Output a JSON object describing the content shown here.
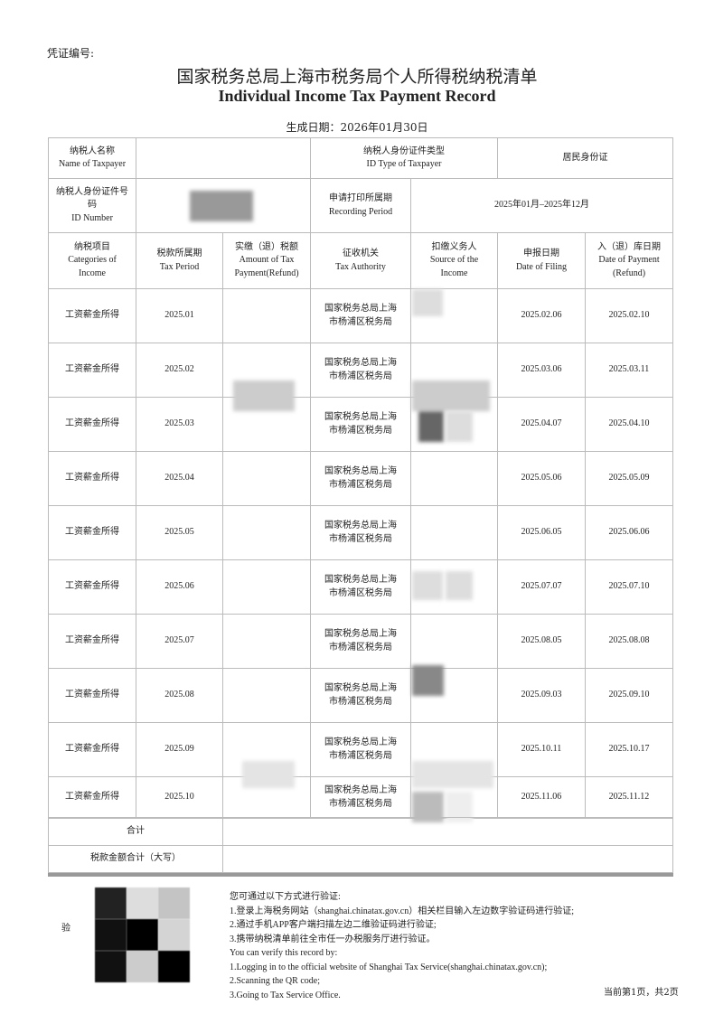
{
  "header": {
    "voucher_label": "凭证编号:",
    "title_cn": "国家税务总局上海市税务局个人所得税纳税清单",
    "title_en": "Individual Income Tax Payment Record",
    "generated": "生成日期：2026年01月30日"
  },
  "info": {
    "name_label_cn": "纳税人名称",
    "name_label_en": "Name of Taxpayer",
    "idtype_label_cn": "纳税人身份证件类型",
    "idtype_label_en": "ID Type of Taxpayer",
    "idtype_value": "居民身份证",
    "idnum_label_cn": "纳税人身份证件号码",
    "idnum_label_en": "ID Number",
    "period_label_cn": "申请打印所属期",
    "period_label_en": "Recording Period",
    "period_value": "2025年01月–2025年12月"
  },
  "columns": [
    {
      "cn": "纳税项目",
      "en": "Categories of Income"
    },
    {
      "cn": "税款所属期",
      "en": "Tax Period"
    },
    {
      "cn": "实缴（退）税额",
      "en": "Amount of Tax Payment(Refund)"
    },
    {
      "cn": "征收机关",
      "en": "Tax Authority"
    },
    {
      "cn": "扣缴义务人",
      "en": "Source of the Income"
    },
    {
      "cn": "申报日期",
      "en": "Date of Filing"
    },
    {
      "cn": "入（退）库日期",
      "en": "Date of Payment (Refund)"
    }
  ],
  "rows": [
    {
      "category": "工资薪金所得",
      "period": "2025.01",
      "authority": "国家税务总局上海市杨浦区税务局",
      "filing": "2025.02.06",
      "payment": "2025.02.10"
    },
    {
      "category": "工资薪金所得",
      "period": "2025.02",
      "authority": "国家税务总局上海市杨浦区税务局",
      "filing": "2025.03.06",
      "payment": "2025.03.11"
    },
    {
      "category": "工资薪金所得",
      "period": "2025.03",
      "authority": "国家税务总局上海市杨浦区税务局",
      "filing": "2025.04.07",
      "payment": "2025.04.10"
    },
    {
      "category": "工资薪金所得",
      "period": "2025.04",
      "authority": "国家税务总局上海市杨浦区税务局",
      "filing": "2025.05.06",
      "payment": "2025.05.09"
    },
    {
      "category": "工资薪金所得",
      "period": "2025.05",
      "authority": "国家税务总局上海市杨浦区税务局",
      "filing": "2025.06.05",
      "payment": "2025.06.06"
    },
    {
      "category": "工资薪金所得",
      "period": "2025.06",
      "authority": "国家税务总局上海市杨浦区税务局",
      "filing": "2025.07.07",
      "payment": "2025.07.10"
    },
    {
      "category": "工资薪金所得",
      "period": "2025.07",
      "authority": "国家税务总局上海市杨浦区税务局",
      "filing": "2025.08.05",
      "payment": "2025.08.08"
    },
    {
      "category": "工资薪金所得",
      "period": "2025.08",
      "authority": "国家税务总局上海市杨浦区税务局",
      "filing": "2025.09.03",
      "payment": "2025.09.10"
    },
    {
      "category": "工资薪金所得",
      "period": "2025.09",
      "authority": "国家税务总局上海市杨浦区税务局",
      "filing": "2025.10.11",
      "payment": "2025.10.17"
    },
    {
      "category": "工资薪金所得",
      "period": "2025.10",
      "authority": "国家税务总局上海市杨浦区税务局",
      "filing": "2025.11.06",
      "payment": "2025.11.12"
    }
  ],
  "totals": {
    "total_label": "合计",
    "total_words_label": "税款金额合计（大写）"
  },
  "footer": {
    "verify_label": "验",
    "lines": [
      "您可通过以下方式进行验证:",
      "1.登录上海税务网站（shanghai.chinatax.gov.cn）相关栏目输入左边数字验证码进行验证;",
      "2.通过手机APP客户端扫描左边二维验证码进行验证;",
      "3.携带纳税清单前往全市任一办税服务厅进行验证。",
      "You can verify this record by:",
      "1.Logging in to the official website of Shanghai Tax Service(shanghai.chinatax.gov.cn);",
      "2.Scanning the QR code;",
      "3.Going to Tax Service Office."
    ],
    "page": "当前第1页，共2页"
  }
}
